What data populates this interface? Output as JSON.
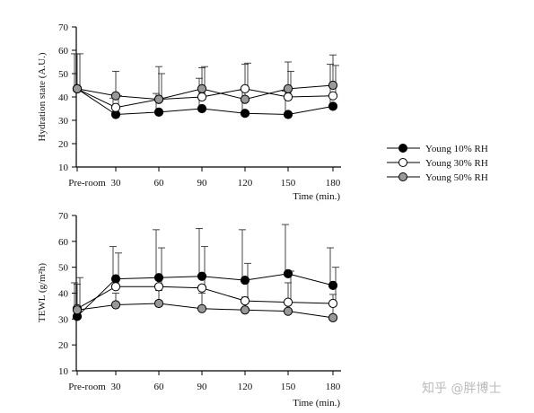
{
  "chart_data": [
    {
      "type": "line",
      "ylabel": "Hydration state (A.U.)",
      "xlabel": "Time (min.)",
      "x_tick_labels": [
        "Pre-room",
        "30",
        "60",
        "90",
        "120",
        "150",
        "180"
      ],
      "ylim": [
        10,
        70
      ],
      "y_ticks": [
        10,
        20,
        30,
        40,
        50,
        60,
        70
      ],
      "series": [
        {
          "name": "Young 10% RH",
          "fill": "#000000",
          "values": [
            43.5,
            32.5,
            33.5,
            35,
            33,
            32.5,
            36
          ],
          "error": [
            15,
            7,
            8,
            13,
            10,
            10,
            18
          ]
        },
        {
          "name": "Young 30% RH",
          "fill": "#ffffff",
          "values": [
            43.5,
            35.5,
            39,
            40,
            43.5,
            40,
            40.5
          ],
          "error": [
            15,
            5,
            11,
            13,
            11,
            11,
            13
          ]
        },
        {
          "name": "Young 50% RH",
          "fill": "#999999",
          "values": [
            43.5,
            40.5,
            39,
            43.5,
            39,
            43.5,
            45
          ],
          "error": [
            15,
            10.5,
            14,
            9,
            15,
            11.5,
            13
          ]
        }
      ]
    },
    {
      "type": "line",
      "ylabel": "TEWL (g/m²h)",
      "xlabel": "Time (min.)",
      "x_tick_labels": [
        "Pre-room",
        "30",
        "60",
        "90",
        "120",
        "150",
        "180"
      ],
      "ylim": [
        10,
        70
      ],
      "y_ticks": [
        10,
        20,
        30,
        40,
        50,
        60,
        70
      ],
      "series": [
        {
          "name": "Young 10% RH",
          "fill": "#000000",
          "values": [
            31,
            45.5,
            46,
            46.5,
            45,
            47.5,
            43
          ],
          "error": [
            13,
            12.5,
            18.5,
            18.5,
            19.5,
            19,
            14.5
          ]
        },
        {
          "name": "Young 30% RH",
          "fill": "#ffffff",
          "values": [
            34,
            42.5,
            42.5,
            42,
            37,
            36.5,
            36
          ],
          "error": [
            12,
            13,
            15,
            16,
            14.5,
            12,
            14
          ]
        },
        {
          "name": "Young 50% RH",
          "fill": "#999999",
          "values": [
            33.5,
            35.5,
            36,
            34,
            33.5,
            33,
            30.5
          ],
          "error": [
            10,
            4.5,
            5,
            6,
            5,
            11,
            9
          ]
        }
      ]
    }
  ],
  "legend": [
    {
      "label": "Young 10% RH",
      "fill": "#000000"
    },
    {
      "label": "Young 30% RH",
      "fill": "#ffffff"
    },
    {
      "label": "Young 50% RH",
      "fill": "#999999"
    }
  ],
  "watermark": "知乎 @胖博士"
}
